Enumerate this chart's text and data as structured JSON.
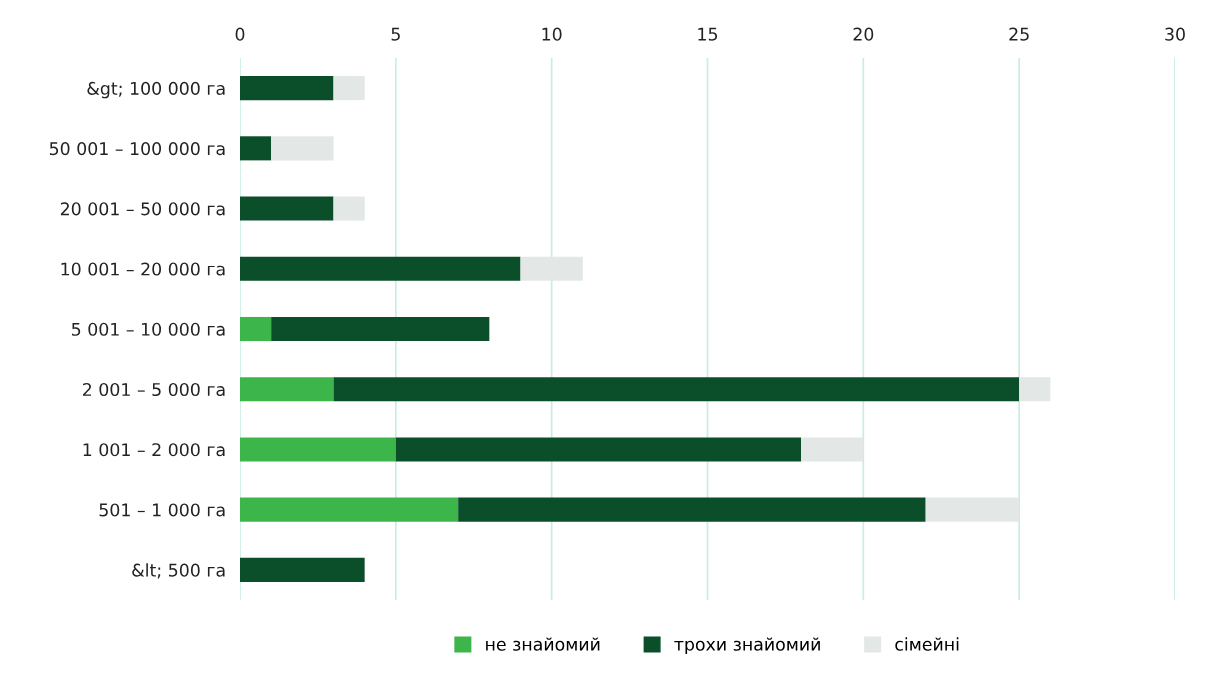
{
  "chart_data": {
    "type": "bar",
    "orientation": "horizontal",
    "stacked": true,
    "categories": [
      "&gt; 100 000 га",
      "50 001 – 100 000 га",
      "20 001 – 50 000 га",
      "10 001 – 20 000 га",
      "5 001 – 10 000 га",
      "2 001 – 5 000 га",
      "1 001 – 2 000 га",
      "501 – 1 000 га",
      "&lt; 500 га"
    ],
    "series": [
      {
        "name": "не знайомий",
        "color": "#3cb54a",
        "values": [
          0,
          0,
          0,
          0,
          1,
          3,
          5,
          7,
          0
        ]
      },
      {
        "name": "трохи знайомий",
        "color": "#0b4f2a",
        "values": [
          3,
          1,
          3,
          9,
          7,
          22,
          13,
          15,
          4
        ]
      },
      {
        "name": "сімейні",
        "color": "#e3e8e6",
        "values": [
          1,
          2,
          1,
          2,
          0,
          1,
          2,
          3,
          0
        ]
      }
    ],
    "xlim": [
      0,
      30
    ],
    "xticks": [
      0,
      5,
      10,
      15,
      20,
      25,
      30
    ],
    "grid": "x",
    "legend": "bottom"
  }
}
